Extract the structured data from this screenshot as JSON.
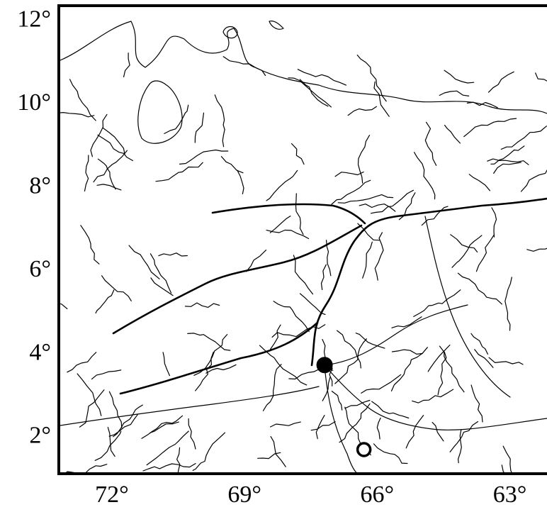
{
  "map": {
    "xlim": [
      73.2,
      62.0
    ],
    "ylim": [
      1.13,
      12.37
    ],
    "xticks": [
      {
        "value": 72,
        "label": "72°"
      },
      {
        "value": 69,
        "label": "69°"
      },
      {
        "value": 66,
        "label": "66°"
      },
      {
        "value": 63,
        "label": "63°"
      }
    ],
    "yticks": [
      {
        "value": 12,
        "label": "12°"
      },
      {
        "value": 10,
        "label": "10°"
      },
      {
        "value": 8,
        "label": "8°"
      },
      {
        "value": 6,
        "label": "6°"
      },
      {
        "value": 4,
        "label": "4°"
      },
      {
        "value": 2,
        "label": "2°"
      }
    ],
    "points": [
      {
        "lon": 67.19,
        "lat": 3.74,
        "filled": true
      },
      {
        "lon": 66.3,
        "lat": 1.71,
        "filled": false
      }
    ]
  }
}
